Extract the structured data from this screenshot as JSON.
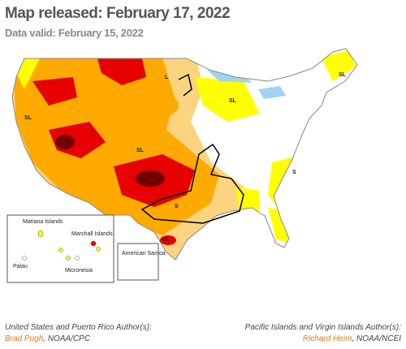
{
  "header": {
    "title": "Map released: February 17, 2022",
    "subtitle": "Data valid: February 15, 2022"
  },
  "map": {
    "labels": [
      "SL",
      "L",
      "SL",
      "SL",
      "SL",
      "S",
      "S",
      "SL"
    ]
  },
  "insets": {
    "pacific": [
      "Mariana Islands",
      "Marshall Islands",
      "Palau",
      "Micronesia"
    ],
    "samoa": "American Samoa"
  },
  "authors": [
    {
      "region": "United States and Puerto Rico Author(s):",
      "name": "Brad Pugh",
      "affiliation": ", NOAA/CPC"
    },
    {
      "region": "Pacific Islands and Virgin Islands Author(s):",
      "name": "Richard Heim",
      "affiliation": ", NOAA/NCEI"
    }
  ]
}
